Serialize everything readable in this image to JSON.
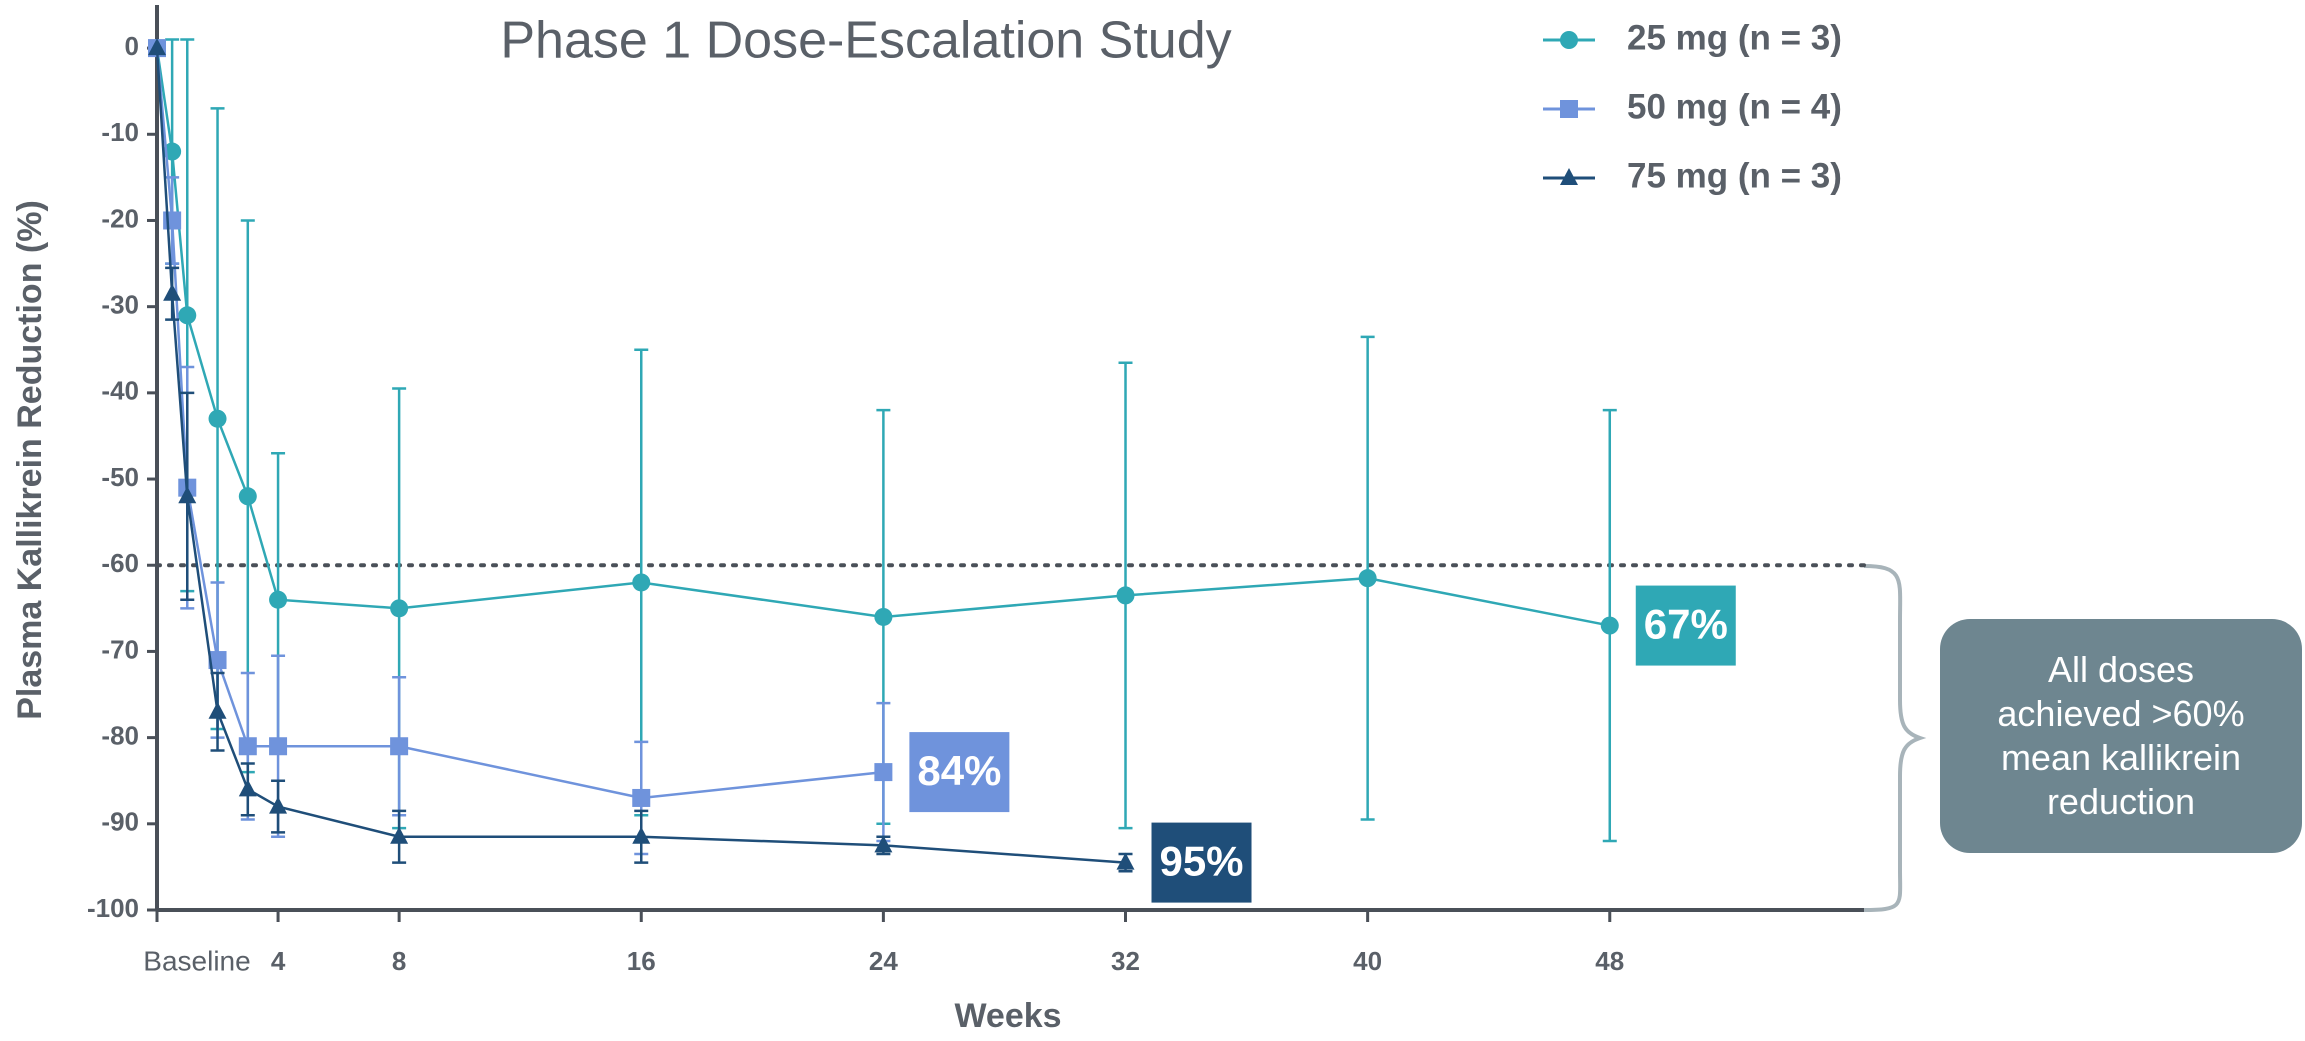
{
  "chart_data": {
    "type": "line",
    "title": "Phase 1 Dose-Escalation Study",
    "x_label": "Weeks",
    "y_label": "Plasma Kallikrein Reduction (%)",
    "xlim": [
      0,
      56.4
    ],
    "xticks": [
      {
        "value": 0,
        "label": "Baseline"
      },
      4,
      8,
      16,
      24,
      32,
      40,
      48
    ],
    "ylim": [
      -100,
      5
    ],
    "yticks": [
      0,
      -10,
      -20,
      -30,
      -40,
      -50,
      -60,
      -70,
      -80,
      -90,
      -100
    ],
    "reference_line": -60,
    "legend": "upper right",
    "series": [
      {
        "name": "25 mg (n = 3)",
        "color": "#2fa8b5",
        "marker": "circle",
        "x": [
          0,
          0.5,
          1,
          2,
          3,
          4,
          8,
          16,
          24,
          32,
          40,
          48
        ],
        "values": [
          0,
          -12,
          -31,
          -43,
          -52,
          -64,
          -65,
          -62,
          -66,
          -63.5,
          -61.5,
          -67
        ],
        "errors": [
          0,
          13,
          32,
          36,
          32,
          17,
          25.5,
          27,
          24,
          27,
          28,
          25
        ],
        "end_label": "67%"
      },
      {
        "name": "50 mg (n = 4)",
        "color": "#6f93dc",
        "marker": "square",
        "x": [
          0,
          0.5,
          1,
          2,
          3,
          4,
          8,
          16,
          24
        ],
        "values": [
          0,
          -20,
          -51,
          -71,
          -81,
          -81,
          -81,
          -87,
          -84
        ],
        "errors": [
          0,
          5,
          14,
          9,
          8.5,
          10.5,
          8,
          6.5,
          8
        ],
        "end_label": "84%"
      },
      {
        "name": "75 mg (n = 3)",
        "color": "#1f4e79",
        "marker": "triangle",
        "x": [
          0,
          0.5,
          1,
          2,
          3,
          4,
          8,
          16,
          24,
          32
        ],
        "values": [
          0,
          -28.5,
          -52,
          -77,
          -86,
          -88,
          -91.5,
          -91.5,
          -92.5,
          -94.5
        ],
        "errors": [
          0,
          3,
          12,
          4.5,
          3,
          3,
          3,
          3,
          1,
          1
        ],
        "end_label": "95%"
      }
    ],
    "callout": "All doses achieved >60% mean kallikrein reduction"
  }
}
